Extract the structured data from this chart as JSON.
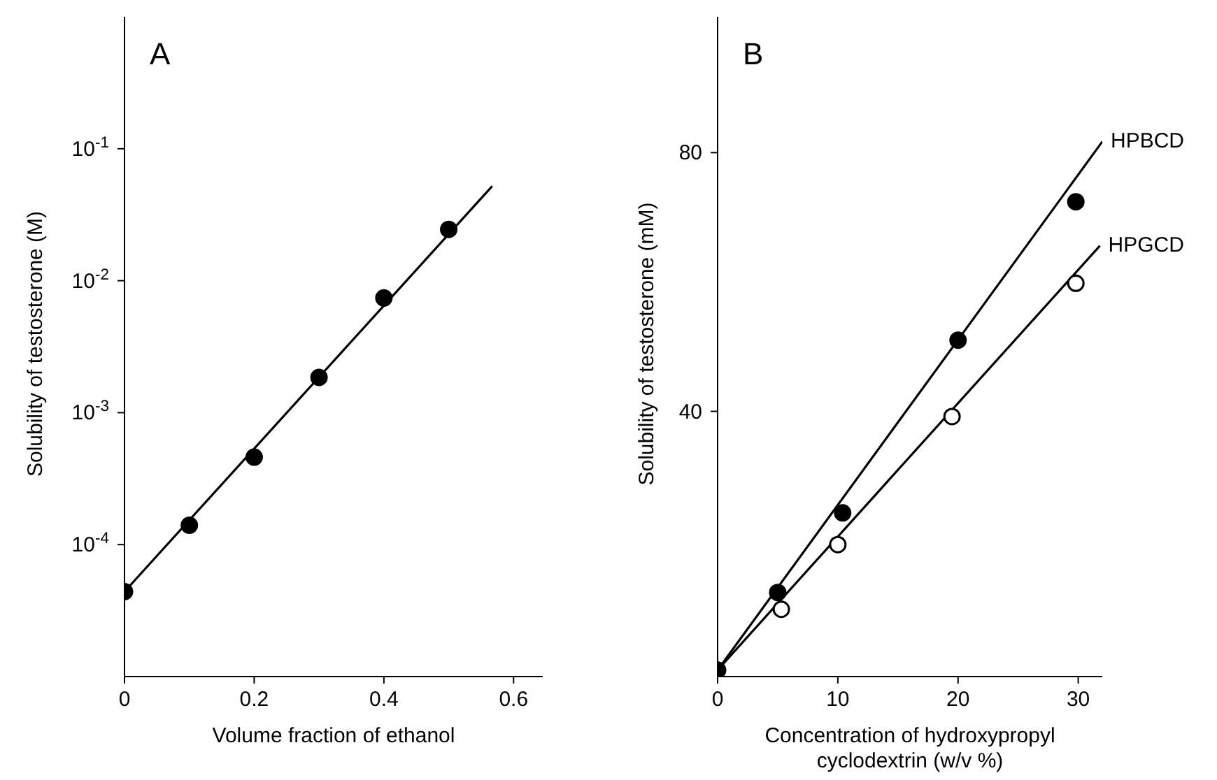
{
  "chart_data": [
    {
      "type": "scatter",
      "title": "A",
      "xlabel": "Volume fraction of ethanol",
      "ylabel": "Solubility of testosterone (M)",
      "log": "y",
      "xlim": [
        0,
        0.645
      ],
      "ylim": [
        1e-05,
        1
      ],
      "xticks": [
        0,
        0.2,
        0.4,
        0.6
      ],
      "yticks": [
        {
          "value": 0.0001,
          "label": "10$^{-4}$"
        },
        {
          "value": 0.001,
          "label": "10$^{-3}$"
        },
        {
          "value": 0.01,
          "label": "10$^{-2}$"
        },
        {
          "value": 0.1,
          "label": "10$^{-1}$"
        }
      ],
      "marker": "circle",
      "legend": false,
      "grid": false,
      "series": [
        {
          "color": "#000000",
          "x": [
            0,
            0.1,
            0.2,
            0.3,
            0.4,
            0.5
          ],
          "values": [
            4.4e-05,
            0.00014,
            0.00046,
            0.00185,
            0.0074,
            0.0245
          ]
        },
        {
          "type": "line",
          "marker": "none",
          "color": "#000000",
          "x": [
            0,
            0.567
          ],
          "values": [
            4.4e-05,
            0.052
          ]
        }
      ]
    },
    {
      "type": "scatter",
      "title": "B",
      "xlabel": "Concentration of hydroxypropyl cyclodextrin (w/v %)",
      "ylabel": "Solubility of testosterone (mM)",
      "xlim": [
        0,
        32
      ],
      "ylim": [
        -1,
        101
      ],
      "xticks": [
        0,
        10,
        20,
        30
      ],
      "yticks": [
        40,
        80
      ],
      "marker": "circle",
      "legend": false,
      "grid": false,
      "series": [
        {
          "color": "#ffffff",
          "x": [
            5.3,
            10,
            19.5,
            29.8
          ],
          "values": [
            9.4,
            19.4,
            39.2,
            59.8
          ]
        },
        {
          "color": "#000000",
          "x": [
            0,
            5,
            10.4,
            20,
            29.8
          ],
          "values": [
            0,
            12,
            24.3,
            51,
            72.4
          ]
        },
        {
          "type": "line",
          "marker": "none",
          "name": "HPBCD",
          "color": "#000000",
          "x": [
            0,
            32
          ],
          "values": [
            0,
            81.7
          ]
        },
        {
          "type": "line",
          "marker": "none",
          "name": "HPGCD",
          "color": "#000000",
          "x": [
            0,
            31.8
          ],
          "values": [
            0,
            65.6
          ]
        }
      ]
    }
  ]
}
